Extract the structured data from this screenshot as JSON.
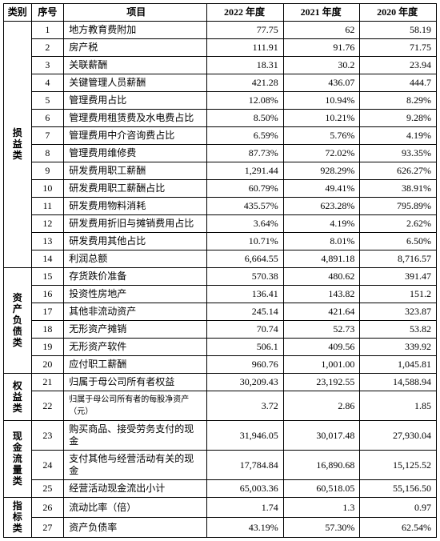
{
  "header": {
    "category": "类别",
    "seq": "序号",
    "item": "项目",
    "y2022": "2022 年度",
    "y2021": "2021 年度",
    "y2020": "2020 年度"
  },
  "groups": [
    {
      "label": "损益类",
      "rows": [
        {
          "seq": "1",
          "item": "地方教育费附加",
          "y2022": "77.75",
          "y2021": "62",
          "y2020": "58.19"
        },
        {
          "seq": "2",
          "item": "房产税",
          "y2022": "111.91",
          "y2021": "91.76",
          "y2020": "71.75"
        },
        {
          "seq": "3",
          "item": "关联薪酬",
          "y2022": "18.31",
          "y2021": "30.2",
          "y2020": "23.94"
        },
        {
          "seq": "4",
          "item": "关键管理人员薪酬",
          "y2022": "421.28",
          "y2021": "436.07",
          "y2020": "444.7"
        },
        {
          "seq": "5",
          "item": "管理费用占比",
          "y2022": "12.08%",
          "y2021": "10.94%",
          "y2020": "8.29%"
        },
        {
          "seq": "6",
          "item": "管理费用租赁费及水电费占比",
          "y2022": "8.50%",
          "y2021": "10.21%",
          "y2020": "9.28%"
        },
        {
          "seq": "7",
          "item": "管理费用中介咨询费占比",
          "y2022": "6.59%",
          "y2021": "5.76%",
          "y2020": "4.19%"
        },
        {
          "seq": "8",
          "item": "管理费用维修费",
          "y2022": "87.73%",
          "y2021": "72.02%",
          "y2020": "93.35%"
        },
        {
          "seq": "9",
          "item": "研发费用职工薪酬",
          "y2022": "1,291.44",
          "y2021": "928.29%",
          "y2020": "626.27%"
        },
        {
          "seq": "10",
          "item": "研发费用职工薪酬占比",
          "y2022": "60.79%",
          "y2021": "49.41%",
          "y2020": "38.91%"
        },
        {
          "seq": "11",
          "item": "研发费用物料消耗",
          "y2022": "435.57%",
          "y2021": "623.28%",
          "y2020": "795.89%"
        },
        {
          "seq": "12",
          "item": "研发费用折旧与摊销费用占比",
          "y2022": "3.64%",
          "y2021": "4.19%",
          "y2020": "2.62%"
        },
        {
          "seq": "13",
          "item": "研发费用其他占比",
          "y2022": "10.71%",
          "y2021": "8.01%",
          "y2020": "6.50%"
        },
        {
          "seq": "14",
          "item": "利润总额",
          "y2022": "6,664.55",
          "y2021": "4,891.18",
          "y2020": "8,716.57"
        }
      ]
    },
    {
      "label": "资产负债类",
      "rows": [
        {
          "seq": "15",
          "item": "存货跌价准备",
          "y2022": "570.38",
          "y2021": "480.62",
          "y2020": "391.47"
        },
        {
          "seq": "16",
          "item": "投资性房地产",
          "y2022": "136.41",
          "y2021": "143.82",
          "y2020": "151.2"
        },
        {
          "seq": "17",
          "item": "其他非流动资产",
          "y2022": "245.14",
          "y2021": "421.64",
          "y2020": "323.87"
        },
        {
          "seq": "18",
          "item": "无形资产摊销",
          "y2022": "70.74",
          "y2021": "52.73",
          "y2020": "53.82"
        },
        {
          "seq": "19",
          "item": "无形资产软件",
          "y2022": "506.1",
          "y2021": "409.56",
          "y2020": "339.92"
        },
        {
          "seq": "20",
          "item": "应付职工薪酬",
          "y2022": "960.76",
          "y2021": "1,001.00",
          "y2020": "1,045.81"
        }
      ]
    },
    {
      "label": "权益类",
      "rows": [
        {
          "seq": "21",
          "item": "归属于母公司所有者权益",
          "y2022": "30,209.43",
          "y2021": "23,192.55",
          "y2020": "14,588.94"
        },
        {
          "seq": "22",
          "item": "归属于母公司所有者的每股净资产（元）",
          "y2022": "3.72",
          "y2021": "2.86",
          "y2020": "1.85",
          "small": true
        }
      ]
    },
    {
      "label": "现金流量类",
      "rows": [
        {
          "seq": "23",
          "item": "购买商品、接受劳务支付的现金",
          "y2022": "31,946.05",
          "y2021": "30,017.48",
          "y2020": "27,930.04"
        },
        {
          "seq": "24",
          "item": "支付其他与经营活动有关的现金",
          "y2022": "17,784.84",
          "y2021": "16,890.68",
          "y2020": "15,125.52"
        },
        {
          "seq": "25",
          "item": "经营活动现金流出小计",
          "y2022": "65,003.36",
          "y2021": "60,518.05",
          "y2020": "55,156.50"
        }
      ]
    },
    {
      "label": "指标类",
      "rows": [
        {
          "seq": "26",
          "item": "流动比率（倍）",
          "y2022": "1.74",
          "y2021": "1.3",
          "y2020": "0.97"
        },
        {
          "seq": "27",
          "item": "资产负债率",
          "y2022": "43.19%",
          "y2021": "57.30%",
          "y2020": "62.54%"
        }
      ]
    }
  ]
}
